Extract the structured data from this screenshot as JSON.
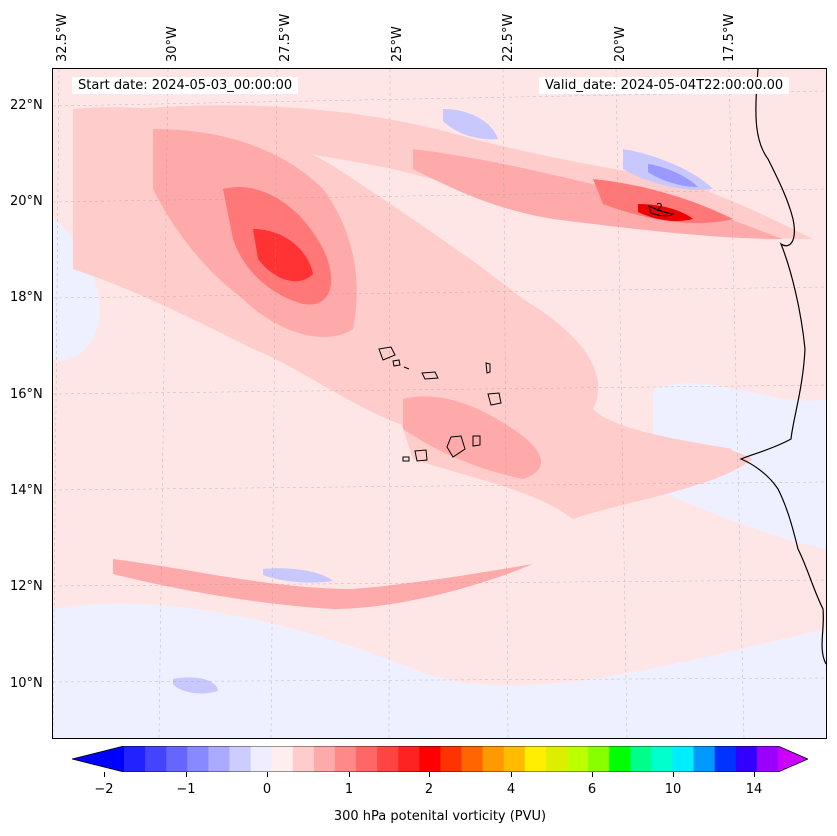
{
  "map": {
    "lon_labels": [
      "32.5°W",
      "30°W",
      "27.5°W",
      "25°W",
      "22.5°W",
      "20°W",
      "17.5°W"
    ],
    "lat_labels": [
      "22°N",
      "20°N",
      "18°N",
      "16°N",
      "14°N",
      "12°N",
      "10°N"
    ],
    "start_date": "Start date: 2024-05-03_00:00:00",
    "valid_date": "Valid_date: 2024-05-04T22:00:00.00",
    "contour_label": "2",
    "colors": {
      "background_low": "#eef0ff",
      "light_pink": "#ffe6e6",
      "pink": "#ffcccc",
      "salmon": "#ffaaaa",
      "red_mid": "#ff7777",
      "red_strong": "#ff3333",
      "red_max": "#ee0000",
      "blue_light": "#c8c8ff",
      "blue_mid": "#9999ff",
      "coast": "#000000"
    }
  },
  "colorbar": {
    "ticks": [
      "−2",
      "−1",
      "0",
      "1",
      "2",
      "4",
      "6",
      "10",
      "14"
    ],
    "label": "300 hPa potenital vorticity (PVU)",
    "colors": [
      "#0000ff",
      "#2222ff",
      "#4444ff",
      "#6666ff",
      "#8888ff",
      "#aaaaff",
      "#ccccff",
      "#eeeeff",
      "#ffeeee",
      "#ffcccc",
      "#ffaaaa",
      "#ff8888",
      "#ff6666",
      "#ff4444",
      "#ff2222",
      "#ff0000",
      "#ff3300",
      "#ff6600",
      "#ff9900",
      "#ffbb00",
      "#ffee00",
      "#ddee00",
      "#bbff00",
      "#88ff00",
      "#00ff00",
      "#00ff88",
      "#00ffcc",
      "#00eeff",
      "#0099ff",
      "#0033ff",
      "#3300ff",
      "#9900ff",
      "#cc00ff"
    ]
  }
}
